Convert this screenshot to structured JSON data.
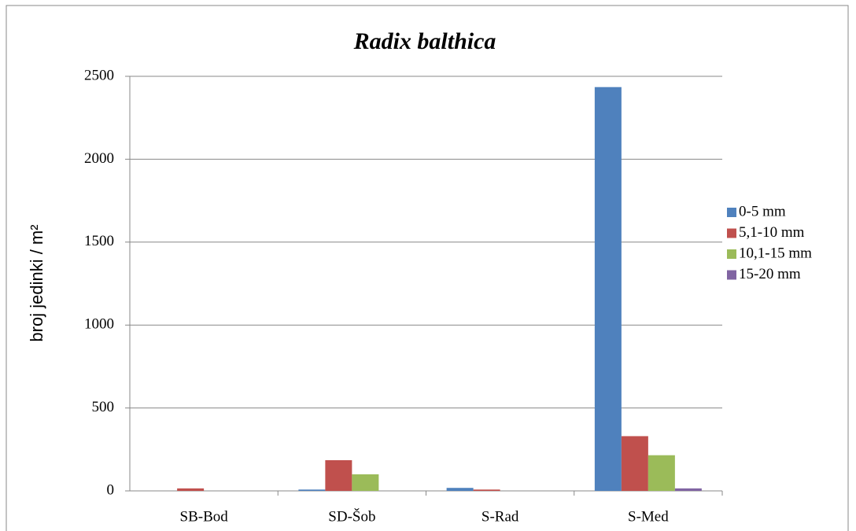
{
  "chart_data": {
    "type": "bar",
    "title": "Radix balthica",
    "y_label": "broj jedinki / m²",
    "categories": [
      "SB-Bod",
      "SD-Šob",
      "S-Rad",
      "S-Med"
    ],
    "series": [
      {
        "name": "0-5 mm",
        "color": "#4f81bd",
        "values": [
          0,
          8,
          18,
          2435
        ]
      },
      {
        "name": "5,1-10 mm",
        "color": "#c0504d",
        "values": [
          15,
          185,
          8,
          330
        ]
      },
      {
        "name": "10,1-15 mm",
        "color": "#9bbb59",
        "values": [
          0,
          100,
          0,
          215
        ]
      },
      {
        "name": "15-20 mm",
        "color": "#8064a2",
        "values": [
          0,
          0,
          0,
          15
        ]
      }
    ],
    "ylim": [
      0,
      2500
    ],
    "yticks": [
      0,
      500,
      1000,
      1500,
      2000,
      2500
    ],
    "grid": true,
    "legend_position": "right"
  }
}
